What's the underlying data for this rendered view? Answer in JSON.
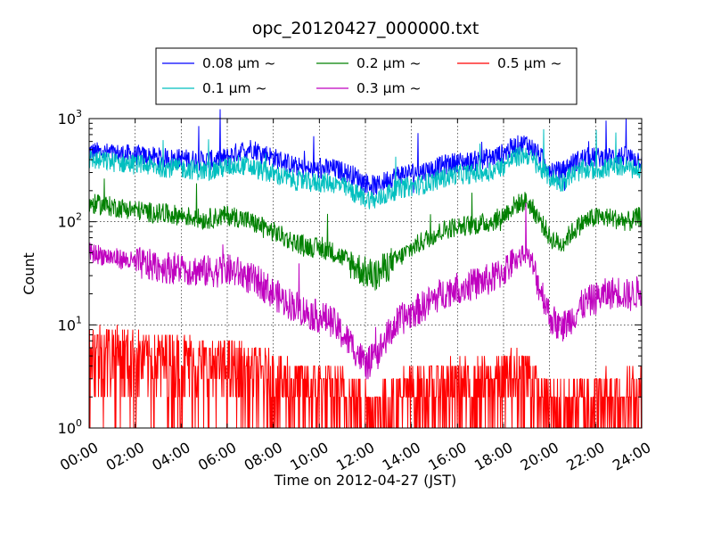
{
  "chart_data": {
    "type": "line",
    "title": "opc_20120427_000000.txt",
    "xlabel": "Time on 2012-04-27 (JST)",
    "ylabel": "Count",
    "y_scale": "log",
    "ylim": [
      1,
      1000
    ],
    "xlim": [
      "00:00",
      "24:00"
    ],
    "y_ticks": [
      {
        "value": 1,
        "base": "10",
        "exp": "0"
      },
      {
        "value": 10,
        "base": "10",
        "exp": "1"
      },
      {
        "value": 100,
        "base": "10",
        "exp": "2"
      },
      {
        "value": 1000,
        "base": "10",
        "exp": "3"
      }
    ],
    "x_ticks": [
      "00:00",
      "02:00",
      "04:00",
      "06:00",
      "08:00",
      "10:00",
      "12:00",
      "14:00",
      "16:00",
      "18:00",
      "20:00",
      "22:00",
      "24:00"
    ],
    "grid": true,
    "legend_position": "top, outside plot",
    "x": [
      "00:00",
      "00:30",
      "01:00",
      "01:30",
      "02:00",
      "02:30",
      "03:00",
      "03:30",
      "04:00",
      "04:30",
      "05:00",
      "05:30",
      "06:00",
      "06:30",
      "07:00",
      "07:30",
      "08:00",
      "08:30",
      "09:00",
      "09:30",
      "10:00",
      "10:30",
      "11:00",
      "11:30",
      "12:00",
      "12:30",
      "13:00",
      "13:30",
      "14:00",
      "14:30",
      "15:00",
      "15:30",
      "16:00",
      "16:30",
      "17:00",
      "17:30",
      "18:00",
      "18:30",
      "19:00",
      "19:30",
      "20:00",
      "20:30",
      "21:00",
      "21:30",
      "22:00",
      "22:30",
      "23:00",
      "23:30",
      "24:00"
    ],
    "series": [
      {
        "name": "0.08 μm ~",
        "color": "#0000ff",
        "values": [
          480,
          470,
          460,
          455,
          440,
          430,
          420,
          410,
          410,
          400,
          390,
          400,
          420,
          480,
          520,
          470,
          420,
          380,
          340,
          320,
          320,
          330,
          310,
          280,
          240,
          220,
          260,
          290,
          300,
          310,
          330,
          360,
          380,
          380,
          400,
          420,
          460,
          540,
          580,
          450,
          330,
          300,
          370,
          420,
          420,
          420,
          440,
          420,
          400
        ]
      },
      {
        "name": "0.1 μm ~",
        "color": "#00bfbf",
        "values": [
          400,
          390,
          380,
          370,
          360,
          350,
          340,
          335,
          330,
          320,
          310,
          320,
          340,
          360,
          340,
          310,
          290,
          270,
          250,
          240,
          240,
          240,
          220,
          190,
          170,
          160,
          190,
          210,
          220,
          230,
          250,
          270,
          290,
          290,
          300,
          310,
          350,
          420,
          450,
          340,
          270,
          240,
          290,
          320,
          320,
          330,
          350,
          330,
          310
        ]
      },
      {
        "name": "0.2 μm ~",
        "color": "#008000",
        "values": [
          150,
          145,
          140,
          135,
          130,
          125,
          120,
          118,
          115,
          110,
          105,
          110,
          115,
          110,
          100,
          90,
          80,
          70,
          62,
          58,
          55,
          52,
          45,
          38,
          32,
          30,
          38,
          45,
          55,
          65,
          75,
          85,
          90,
          92,
          95,
          100,
          115,
          145,
          160,
          110,
          70,
          60,
          80,
          100,
          110,
          110,
          105,
          100,
          115
        ]
      },
      {
        "name": "0.3 μm ~",
        "color": "#bf00bf",
        "values": [
          50,
          48,
          45,
          43,
          40,
          38,
          37,
          36,
          35,
          34,
          33,
          33,
          34,
          32,
          28,
          25,
          20,
          17,
          15,
          13,
          12,
          11,
          8,
          6,
          4,
          5,
          8,
          11,
          13,
          15,
          18,
          21,
          23,
          24,
          26,
          28,
          33,
          42,
          50,
          25,
          12,
          9,
          12,
          16,
          18,
          20,
          21,
          19,
          22
        ]
      },
      {
        "name": "0.5 μm ~",
        "color": "#ff0000",
        "values": [
          5,
          5,
          5,
          4.5,
          4.5,
          4,
          4,
          4,
          4,
          3.8,
          3.5,
          3.5,
          3.5,
          3.3,
          3,
          3,
          2.5,
          2.5,
          2.2,
          2,
          2,
          2,
          1.8,
          1.6,
          1.4,
          1.4,
          1.6,
          1.8,
          2,
          2,
          2,
          2.2,
          2.2,
          2.2,
          2.2,
          2.3,
          2.5,
          2.8,
          3,
          1.8,
          1.4,
          1.3,
          1.5,
          1.6,
          1.7,
          1.8,
          1.8,
          1.8,
          1.8
        ]
      }
    ]
  }
}
